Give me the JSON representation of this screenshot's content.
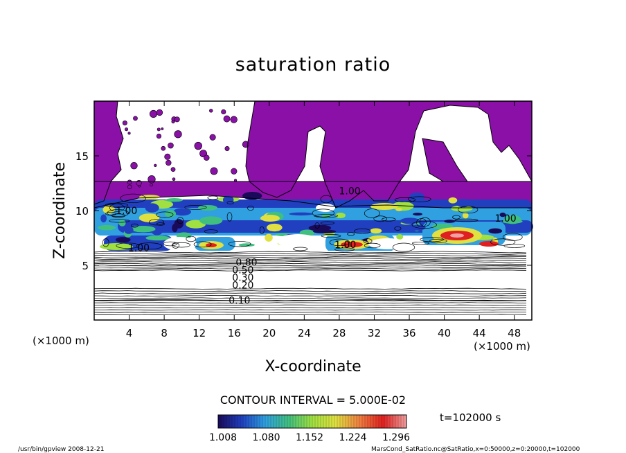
{
  "chart_data": {
    "type": "contour",
    "title": "saturation ratio",
    "xlabel": "X-coordinate",
    "ylabel": "Z-coordinate",
    "x_unit": "(×1000 m)",
    "y_unit": "(×1000 m)",
    "xlim": [
      0,
      50
    ],
    "ylim": [
      0,
      20
    ],
    "xticks": [
      4,
      8,
      12,
      16,
      20,
      24,
      28,
      32,
      36,
      40,
      44,
      48
    ],
    "yticks": [
      5,
      10,
      15
    ],
    "contour_interval_label": "CONTOUR INTERVAL = 5.000E-02",
    "contour_labels": [
      {
        "x": 16.6,
        "z": 1.8,
        "text": "0.10"
      },
      {
        "x": 17.0,
        "z": 3.2,
        "text": "0.20"
      },
      {
        "x": 17.0,
        "z": 3.9,
        "text": "0.30"
      },
      {
        "x": 17.0,
        "z": 4.6,
        "text": "0.50"
      },
      {
        "x": 17.4,
        "z": 5.3,
        "text": "0.80"
      },
      {
        "x": 5.1,
        "z": 6.6,
        "text": "1.00"
      },
      {
        "x": 3.7,
        "z": 10.0,
        "text": "1.00"
      },
      {
        "x": 28.7,
        "z": 6.9,
        "text": "1.00"
      },
      {
        "x": 29.2,
        "z": 11.8,
        "text": "1.00"
      },
      {
        "x": 47.0,
        "z": 9.3,
        "text": "1.00"
      }
    ],
    "colorbar": {
      "ticks": [
        "1.008",
        "1.080",
        "1.152",
        "1.224",
        "1.296"
      ],
      "colors": [
        "#1a0a5a",
        "#2040c0",
        "#30a0e0",
        "#40c080",
        "#a0e040",
        "#e0e040",
        "#f08040",
        "#e02020",
        "#f0a0a0"
      ]
    },
    "time_label": "t=102000 s",
    "subsaturated_fill": "#8a10a8",
    "footer_left": "/usr/bin/gpview   2008-12-21",
    "footer_right": "MarsCond_SatRatio.nc@SatRatio,x=0:50000,z=0:20000,t=102000"
  }
}
